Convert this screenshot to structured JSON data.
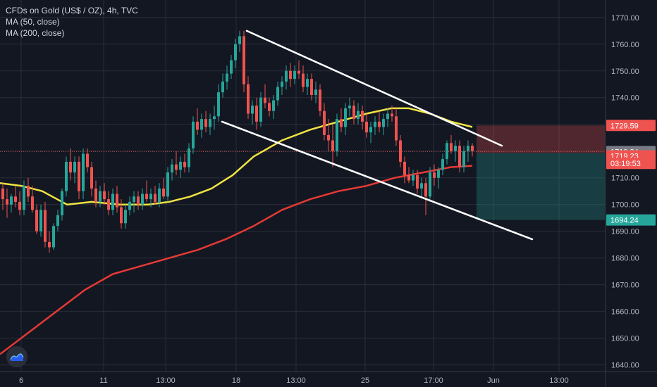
{
  "legend": {
    "symbol": "CFDs on Gold (US$ / OZ), 4h, TVC",
    "ma50": "MA (50, close)",
    "ma200": "MA (200, close)"
  },
  "colors": {
    "background": "#131722",
    "grid": "#2a2e39",
    "up": "#26a69a",
    "down": "#ef5350",
    "ma50": "#f0e442",
    "ma200": "#e53935",
    "trendline": "#ffffff",
    "axis_text": "#b2b5be"
  },
  "chart_data": {
    "type": "candlestick",
    "instrument": "CFDs on Gold (US$ / OZ)",
    "timeframe": "4h",
    "ylim": [
      1637,
      1776
    ],
    "y_ticks": [
      "1770.00",
      "1760.00",
      "1750.00",
      "1740.00",
      "1730.00",
      "1720.00",
      "1710.00",
      "1700.00",
      "1690.00",
      "1680.00",
      "1670.00",
      "1660.00",
      "1650.00",
      "1640.00"
    ],
    "x_tick_labels": [
      "6",
      "11",
      "13:00",
      "18",
      "13:00",
      "25",
      "17:00",
      "Jun",
      "13:00"
    ],
    "series": [
      {
        "name": "MA (50, close)",
        "points": [
          [
            0,
            1708
          ],
          [
            30,
            1707
          ],
          [
            60,
            1705
          ],
          [
            95,
            1700
          ],
          [
            130,
            1701
          ],
          [
            170,
            1700
          ],
          [
            210,
            1700
          ],
          [
            240,
            1701
          ],
          [
            270,
            1703
          ],
          [
            300,
            1706
          ],
          [
            330,
            1711
          ],
          [
            360,
            1718
          ],
          [
            400,
            1724
          ],
          [
            440,
            1728
          ],
          [
            480,
            1731
          ],
          [
            520,
            1734
          ],
          [
            555,
            1736
          ],
          [
            580,
            1736
          ],
          [
            610,
            1734
          ],
          [
            640,
            1731
          ],
          [
            670,
            1729
          ]
        ]
      },
      {
        "name": "MA (200, close)",
        "points": [
          [
            0,
            1644
          ],
          [
            40,
            1652
          ],
          [
            80,
            1660
          ],
          [
            120,
            1668
          ],
          [
            160,
            1674
          ],
          [
            200,
            1677
          ],
          [
            240,
            1680
          ],
          [
            280,
            1683
          ],
          [
            320,
            1687
          ],
          [
            360,
            1692
          ],
          [
            400,
            1698
          ],
          [
            440,
            1702
          ],
          [
            480,
            1705
          ],
          [
            520,
            1707
          ],
          [
            560,
            1710
          ],
          [
            600,
            1712
          ],
          [
            640,
            1714
          ],
          [
            670,
            1714.5
          ]
        ]
      }
    ],
    "candles": [
      [
        4,
        1706,
        1708,
        1698,
        1702
      ],
      [
        10,
        1702,
        1706,
        1695,
        1700
      ],
      [
        16,
        1700,
        1704,
        1697,
        1703
      ],
      [
        22,
        1703,
        1707,
        1699,
        1701
      ],
      [
        28,
        1701,
        1705,
        1696,
        1698
      ],
      [
        34,
        1698,
        1709,
        1696,
        1707
      ],
      [
        40,
        1707,
        1710,
        1701,
        1703
      ],
      [
        46,
        1703,
        1707,
        1697,
        1698
      ],
      [
        52,
        1698,
        1700,
        1689,
        1690
      ],
      [
        58,
        1690,
        1700,
        1688,
        1698
      ],
      [
        64,
        1698,
        1701,
        1684,
        1686
      ],
      [
        70,
        1686,
        1690,
        1682,
        1684
      ],
      [
        76,
        1684,
        1693,
        1683,
        1692
      ],
      [
        82,
        1692,
        1698,
        1690,
        1696
      ],
      [
        88,
        1696,
        1706,
        1694,
        1705
      ],
      [
        94,
        1705,
        1718,
        1703,
        1716
      ],
      [
        100,
        1716,
        1721,
        1709,
        1712
      ],
      [
        106,
        1712,
        1718,
        1708,
        1716
      ],
      [
        112,
        1716,
        1718,
        1702,
        1705
      ],
      [
        118,
        1705,
        1721,
        1702,
        1719
      ],
      [
        124,
        1719,
        1721,
        1712,
        1714
      ],
      [
        130,
        1714,
        1716,
        1703,
        1706
      ],
      [
        136,
        1706,
        1709,
        1699,
        1701
      ],
      [
        142,
        1701,
        1707,
        1699,
        1705
      ],
      [
        148,
        1705,
        1708,
        1700,
        1702
      ],
      [
        154,
        1702,
        1705,
        1696,
        1698
      ],
      [
        160,
        1698,
        1706,
        1696,
        1704
      ],
      [
        166,
        1704,
        1707,
        1697,
        1699
      ],
      [
        172,
        1699,
        1702,
        1691,
        1693
      ],
      [
        178,
        1693,
        1700,
        1691,
        1698
      ],
      [
        184,
        1698,
        1703,
        1696,
        1701
      ],
      [
        190,
        1701,
        1705,
        1697,
        1703
      ],
      [
        196,
        1703,
        1705,
        1698,
        1700
      ],
      [
        202,
        1700,
        1706,
        1698,
        1704
      ],
      [
        208,
        1704,
        1709,
        1701,
        1702
      ],
      [
        214,
        1702,
        1706,
        1699,
        1704
      ],
      [
        220,
        1704,
        1707,
        1700,
        1701
      ],
      [
        226,
        1701,
        1708,
        1699,
        1706
      ],
      [
        232,
        1706,
        1710,
        1702,
        1703
      ],
      [
        238,
        1703,
        1714,
        1701,
        1712
      ],
      [
        244,
        1712,
        1717,
        1709,
        1715
      ],
      [
        250,
        1715,
        1720,
        1711,
        1713
      ],
      [
        256,
        1713,
        1718,
        1710,
        1716
      ],
      [
        262,
        1716,
        1719,
        1712,
        1714
      ],
      [
        268,
        1714,
        1723,
        1712,
        1721
      ],
      [
        274,
        1721,
        1733,
        1719,
        1731
      ],
      [
        280,
        1731,
        1736,
        1726,
        1728
      ],
      [
        286,
        1728,
        1734,
        1725,
        1732
      ],
      [
        292,
        1732,
        1735,
        1727,
        1729
      ],
      [
        298,
        1729,
        1734,
        1726,
        1732
      ],
      [
        304,
        1732,
        1737,
        1728,
        1733
      ],
      [
        310,
        1733,
        1745,
        1731,
        1742
      ],
      [
        316,
        1742,
        1749,
        1740,
        1746
      ],
      [
        322,
        1746,
        1752,
        1743,
        1749
      ],
      [
        328,
        1749,
        1756,
        1747,
        1754
      ],
      [
        334,
        1754,
        1762,
        1751,
        1760
      ],
      [
        340,
        1760,
        1765,
        1757,
        1763
      ],
      [
        346,
        1763,
        1765,
        1742,
        1745
      ],
      [
        352,
        1745,
        1748,
        1732,
        1734
      ],
      [
        358,
        1734,
        1739,
        1730,
        1737
      ],
      [
        364,
        1737,
        1740,
        1728,
        1731
      ],
      [
        370,
        1731,
        1742,
        1729,
        1740
      ],
      [
        376,
        1740,
        1745,
        1736,
        1738
      ],
      [
        382,
        1738,
        1740,
        1733,
        1735
      ],
      [
        388,
        1735,
        1741,
        1732,
        1739
      ],
      [
        394,
        1739,
        1746,
        1737,
        1744
      ],
      [
        400,
        1744,
        1748,
        1741,
        1746
      ],
      [
        406,
        1746,
        1752,
        1743,
        1750
      ],
      [
        412,
        1750,
        1753,
        1744,
        1747
      ],
      [
        418,
        1747,
        1752,
        1745,
        1750
      ],
      [
        424,
        1750,
        1754,
        1747,
        1749
      ],
      [
        430,
        1749,
        1752,
        1742,
        1744
      ],
      [
        436,
        1744,
        1749,
        1741,
        1747
      ],
      [
        442,
        1747,
        1749,
        1739,
        1741
      ],
      [
        448,
        1741,
        1746,
        1738,
        1743
      ],
      [
        454,
        1743,
        1745,
        1733,
        1735
      ],
      [
        460,
        1735,
        1738,
        1724,
        1726
      ],
      [
        466,
        1726,
        1732,
        1720,
        1724
      ],
      [
        472,
        1724,
        1730,
        1714,
        1720
      ],
      [
        478,
        1720,
        1734,
        1718,
        1732
      ],
      [
        484,
        1732,
        1736,
        1727,
        1729
      ],
      [
        490,
        1729,
        1738,
        1726,
        1736
      ],
      [
        496,
        1736,
        1740,
        1733,
        1737
      ],
      [
        502,
        1737,
        1739,
        1730,
        1732
      ],
      [
        508,
        1732,
        1738,
        1730,
        1735
      ],
      [
        514,
        1735,
        1737,
        1728,
        1731
      ],
      [
        520,
        1731,
        1734,
        1725,
        1727
      ],
      [
        526,
        1727,
        1731,
        1723,
        1729
      ],
      [
        532,
        1729,
        1733,
        1726,
        1731
      ],
      [
        538,
        1731,
        1735,
        1727,
        1729
      ],
      [
        544,
        1729,
        1734,
        1726,
        1732
      ],
      [
        550,
        1732,
        1736,
        1729,
        1734
      ],
      [
        556,
        1734,
        1737,
        1731,
        1733
      ],
      [
        562,
        1733,
        1736,
        1722,
        1724
      ],
      [
        568,
        1724,
        1726,
        1714,
        1716
      ],
      [
        574,
        1716,
        1718,
        1708,
        1711
      ],
      [
        580,
        1711,
        1714,
        1708,
        1709
      ],
      [
        586,
        1709,
        1713,
        1707,
        1711
      ],
      [
        592,
        1711,
        1713,
        1704,
        1706
      ],
      [
        598,
        1706,
        1710,
        1703,
        1708
      ],
      [
        604,
        1708,
        1710,
        1696,
        1703
      ],
      [
        610,
        1703,
        1714,
        1701,
        1712
      ],
      [
        616,
        1712,
        1715,
        1707,
        1710
      ],
      [
        622,
        1710,
        1714,
        1706,
        1713
      ],
      [
        628,
        1713,
        1719,
        1711,
        1717
      ],
      [
        634,
        1717,
        1724,
        1715,
        1723
      ],
      [
        640,
        1723,
        1726,
        1719,
        1720
      ],
      [
        646,
        1720,
        1724,
        1716,
        1722
      ],
      [
        652,
        1722,
        1724,
        1712,
        1714
      ],
      [
        658,
        1714,
        1722,
        1712,
        1720
      ],
      [
        664,
        1720,
        1724,
        1716,
        1722
      ],
      [
        670,
        1722,
        1723,
        1718,
        1720
      ]
    ],
    "trendlines": [
      {
        "from": [
          350,
          1765
        ],
        "to": [
          712,
          1722
        ]
      },
      {
        "from": [
          315,
          1731
        ],
        "to": [
          755,
          1687
        ]
      }
    ],
    "position": {
      "type": "short",
      "start_x": 676,
      "entry": 1719.23,
      "stop": 1729.59,
      "target": 1694.24
    },
    "price_labels": [
      {
        "value": "1729.59",
        "price": 1729.59,
        "color": "#ef5350"
      },
      {
        "value": "1719.84",
        "price": 1719.84,
        "color": "#787b86"
      },
      {
        "value": "1719.23",
        "price": 1718.2,
        "color": "#ef5350"
      },
      {
        "value": "03:19:53",
        "price": 1715.4,
        "color": "#ef5350"
      },
      {
        "value": "1694.24",
        "price": 1694.24,
        "color": "#26a69a"
      }
    ]
  }
}
